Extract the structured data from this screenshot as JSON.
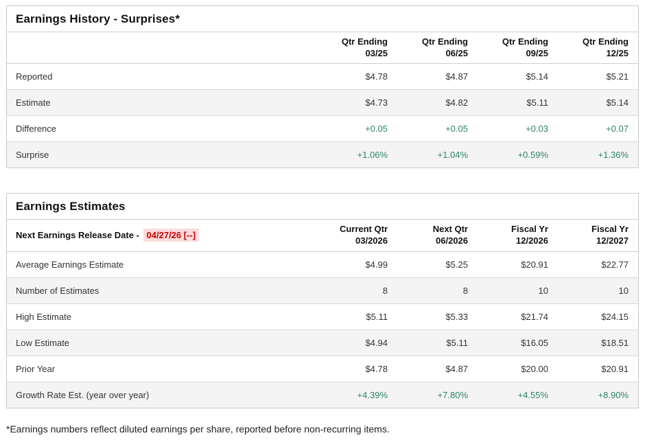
{
  "colors": {
    "positive_green": "#2e8467",
    "alert_red": "#cc0000",
    "alert_red_bg": "#fbdbdb",
    "row_alt_bg": "#f4f4f4",
    "border": "#c9c9c9"
  },
  "earnings_history": {
    "title": "Earnings History - Surprises*",
    "columns": [
      {
        "line1": "Qtr Ending",
        "line2": "03/25"
      },
      {
        "line1": "Qtr Ending",
        "line2": "06/25"
      },
      {
        "line1": "Qtr Ending",
        "line2": "09/25"
      },
      {
        "line1": "Qtr Ending",
        "line2": "12/25"
      }
    ],
    "rows": [
      {
        "label": "Reported",
        "values": [
          "$4.78",
          "$4.87",
          "$5.14",
          "$5.21"
        ],
        "green": false
      },
      {
        "label": "Estimate",
        "values": [
          "$4.73",
          "$4.82",
          "$5.11",
          "$5.14"
        ],
        "green": false
      },
      {
        "label": "Difference",
        "values": [
          "+0.05",
          "+0.05",
          "+0.03",
          "+0.07"
        ],
        "green": true
      },
      {
        "label": "Surprise",
        "values": [
          "+1.06%",
          "+1.04%",
          "+0.59%",
          "+1.36%"
        ],
        "green": true
      }
    ]
  },
  "earnings_estimates": {
    "title": "Earnings Estimates",
    "release_label": "Next Earnings Release Date - ",
    "release_date": "04/27/26 [--]",
    "columns": [
      {
        "line1": "Current Qtr",
        "line2": "03/2026"
      },
      {
        "line1": "Next Qtr",
        "line2": "06/2026"
      },
      {
        "line1": "Fiscal Yr",
        "line2": "12/2026"
      },
      {
        "line1": "Fiscal Yr",
        "line2": "12/2027"
      }
    ],
    "rows": [
      {
        "label": "Average Earnings Estimate",
        "values": [
          "$4.99",
          "$5.25",
          "$20.91",
          "$22.77"
        ],
        "green": false
      },
      {
        "label": "Number of Estimates",
        "values": [
          "8",
          "8",
          "10",
          "10"
        ],
        "green": false
      },
      {
        "label": "High Estimate",
        "values": [
          "$5.11",
          "$5.33",
          "$21.74",
          "$24.15"
        ],
        "green": false
      },
      {
        "label": "Low Estimate",
        "values": [
          "$4.94",
          "$5.11",
          "$16.05",
          "$18.51"
        ],
        "green": false
      },
      {
        "label": "Prior Year",
        "values": [
          "$4.78",
          "$4.87",
          "$20.00",
          "$20.91"
        ],
        "green": false
      },
      {
        "label": "Growth Rate Est. (year over year)",
        "values": [
          "+4.39%",
          "+7.80%",
          "+4.55%",
          "+8.90%"
        ],
        "green": true
      }
    ]
  },
  "footnote": "*Earnings numbers reflect diluted earnings per share, reported before non-recurring items."
}
